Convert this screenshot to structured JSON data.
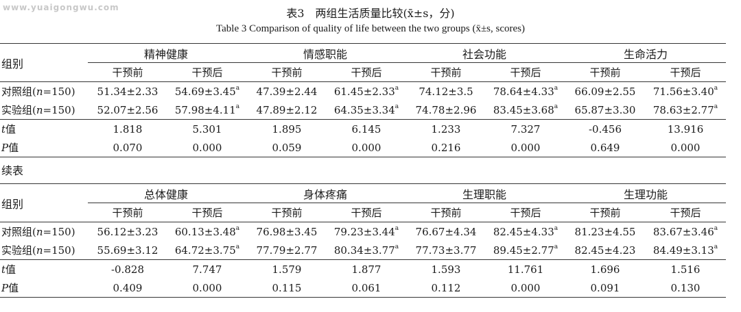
{
  "watermark": "www.yuaigongwu.com",
  "title_zh": "表3　两组生活质量比较(x̄±s，分)",
  "title_en": "Table 3  Comparison of quality of life between the two groups (x̄±s, scores)",
  "row_header": "组别",
  "sub_before": "干预前",
  "sub_after": "干预后",
  "sup": "a",
  "continued": "续表",
  "table1": {
    "groups": [
      "精神健康",
      "情感职能",
      "社会功能",
      "生命活力"
    ],
    "rows": [
      {
        "label": "对照组(n=150)",
        "cells": [
          "51.34±2.33",
          "54.69±3.45",
          "47.39±2.44",
          "61.45±2.33",
          "74.12±3.5",
          "78.64±4.33",
          "66.09±2.55",
          "71.56±3.40"
        ],
        "sup": [
          false,
          true,
          false,
          true,
          false,
          true,
          false,
          true
        ]
      },
      {
        "label": "实验组(n=150)",
        "cells": [
          "52.07±2.56",
          "57.98±4.11",
          "47.89±2.12",
          "64.35±3.34",
          "74.78±2.96",
          "83.45±3.68",
          "65.87±3.30",
          "78.63±2.77"
        ],
        "sup": [
          false,
          true,
          false,
          true,
          false,
          true,
          false,
          true
        ]
      },
      {
        "label": "t值",
        "cells": [
          "1.818",
          "5.301",
          "1.895",
          "6.145",
          "1.233",
          "7.327",
          "-0.456",
          "13.916"
        ],
        "sup": [
          false,
          false,
          false,
          false,
          false,
          false,
          false,
          false
        ]
      },
      {
        "label": "P值",
        "cells": [
          "0.070",
          "0.000",
          "0.059",
          "0.000",
          "0.216",
          "0.000",
          "0.649",
          "0.000"
        ],
        "sup": [
          false,
          false,
          false,
          false,
          false,
          false,
          false,
          false
        ]
      }
    ]
  },
  "table2": {
    "groups": [
      "总体健康",
      "身体疼痛",
      "生理职能",
      "生理功能"
    ],
    "rows": [
      {
        "label": "对照组(n=150)",
        "cells": [
          "56.12±3.23",
          "60.13±3.48",
          "76.98±3.45",
          "79.23±3.44",
          "76.67±4.34",
          "82.45±4.33",
          "81.23±4.55",
          "83.67±3.46"
        ],
        "sup": [
          false,
          true,
          false,
          true,
          false,
          true,
          false,
          true
        ]
      },
      {
        "label": "实验组(n=150)",
        "cells": [
          "55.69±3.12",
          "64.72±3.75",
          "77.79±2.77",
          "80.34±3.77",
          "77.73±3.77",
          "89.45±2.77",
          "82.45±4.23",
          "84.49±3.13"
        ],
        "sup": [
          false,
          true,
          false,
          true,
          false,
          true,
          false,
          true
        ]
      },
      {
        "label": "t值",
        "cells": [
          "-0.828",
          "7.747",
          "1.579",
          "1.877",
          "1.593",
          "11.761",
          "1.696",
          "1.516"
        ],
        "sup": [
          false,
          false,
          false,
          false,
          false,
          false,
          false,
          false
        ]
      },
      {
        "label": "P值",
        "cells": [
          "0.409",
          "0.000",
          "0.115",
          "0.061",
          "0.112",
          "0.000",
          "0.091",
          "0.130"
        ],
        "sup": [
          false,
          false,
          false,
          false,
          false,
          false,
          false,
          false
        ]
      }
    ]
  }
}
